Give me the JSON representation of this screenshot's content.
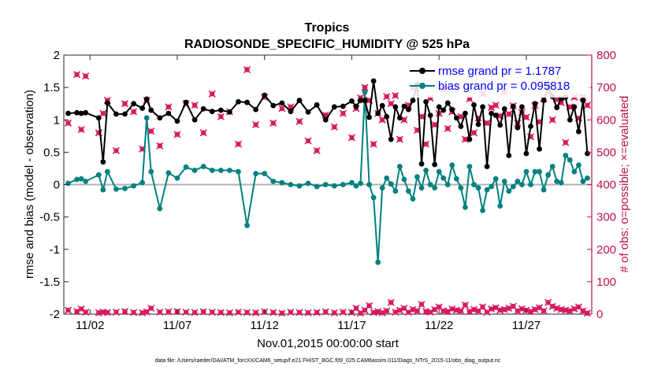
{
  "chart_data": {
    "type": "line",
    "title": "Tropics",
    "subtitle": "RADIOSONDE_SPECIFIC_HUMIDITY @ 525 hPa",
    "xlabel": "Nov.01,2015 00:00:00 start",
    "ylabel": "rmse and bias (model - observation)",
    "ylabel_right": "# of obs: o=possible; ×=evaluated",
    "xlim": [
      0.5,
      30.75
    ],
    "ylim": [
      -2,
      2
    ],
    "ylim_right": [
      0,
      800
    ],
    "x_ticks": [
      2,
      7,
      12,
      17,
      22,
      27
    ],
    "x_tick_labels": [
      "11/02",
      "11/07",
      "11/12",
      "11/17",
      "11/22",
      "11/27"
    ],
    "y_ticks": [
      -2,
      -1.5,
      -1,
      -0.5,
      0,
      0.5,
      1,
      1.5,
      2
    ],
    "y_tick_labels": [
      "-2",
      "-1.5",
      "-1",
      "-0.5",
      "0",
      "0.5",
      "1",
      "1.5",
      "2"
    ],
    "y_ticks_right": [
      0,
      100,
      200,
      300,
      400,
      500,
      600,
      700,
      800
    ],
    "y_tick_labels_right": [
      "0",
      "100",
      "200",
      "300",
      "400",
      "500",
      "600",
      "700",
      "800"
    ],
    "legend": [
      "rmse grand pr = 1.1787",
      "bias grand pr = 0.095818"
    ],
    "legend_position": "top-right",
    "footnote": "data file: /Users/raeder/DAI/ATM_forcXX/CAM6_setup/f.e21.FHIST_BGC.f09_025.CAM6assim.011/Diags_NTrS_2015-11/obs_diag_output.nc",
    "colors": {
      "rmse": "#000000",
      "bias": "#008080",
      "obs": "#d81b60",
      "zero_line": "#b3b3b3"
    },
    "series": [
      {
        "name": "rmse",
        "x": [
          0.75,
          1.25,
          1.5,
          1.75,
          2.5,
          2.75,
          3.0,
          3.5,
          4.0,
          4.5,
          5.0,
          5.25,
          5.5,
          6.0,
          6.5,
          7.0,
          7.5,
          8.0,
          8.5,
          9.0,
          9.5,
          10.0,
          10.5,
          11.0,
          11.5,
          12.0,
          12.5,
          13.0,
          13.5,
          14.0,
          14.5,
          15.0,
          15.5,
          16.0,
          16.5,
          17.0,
          17.25,
          17.5,
          17.75,
          18.0,
          18.25,
          18.5,
          18.75,
          19.0,
          19.25,
          19.5,
          19.75,
          20.0,
          20.25,
          20.5,
          20.75,
          21.0,
          21.25,
          21.5,
          21.75,
          22.0,
          22.25,
          22.5,
          22.75,
          23.0,
          23.25,
          23.5,
          23.75,
          24.0,
          24.25,
          24.5,
          24.75,
          25.0,
          25.25,
          25.5,
          25.75,
          26.0,
          26.25,
          26.5,
          26.75,
          27.0,
          27.25,
          27.5,
          27.75,
          28.0,
          28.25,
          28.5,
          28.75,
          29.0,
          29.25,
          29.5,
          29.75,
          30.0,
          30.25,
          30.5
        ],
        "values": [
          1.1,
          1.11,
          1.1,
          1.11,
          1.03,
          0.35,
          1.26,
          1.09,
          1.09,
          1.25,
          1.18,
          1.32,
          1.15,
          1.03,
          1.1,
          0.98,
          1.27,
          1.0,
          1.17,
          1.13,
          1.15,
          1.12,
          1.28,
          1.27,
          1.16,
          1.38,
          1.22,
          1.26,
          1.13,
          1.3,
          1.12,
          1.23,
          1.0,
          1.2,
          1.21,
          1.29,
          1.21,
          1.3,
          1.3,
          1.04,
          1.6,
          1.1,
          1.22,
          1.05,
          0.7,
          1.2,
          1.03,
          1.21,
          1.16,
          1.3,
          1.55,
          0.32,
          1.28,
          1.07,
          0.31,
          1.2,
          1.15,
          1.26,
          1.16,
          1.03,
          0.9,
          1.1,
          0.7,
          1.23,
          0.93,
          1.2,
          0.28,
          1.1,
          1.07,
          0.92,
          1.17,
          0.45,
          1.21,
          0.88,
          1.2,
          0.48,
          0.9,
          1.25,
          0.55,
          1.3,
          1.53,
          1.36,
          1.19,
          1.33,
          1.35,
          1.0,
          1.2,
          0.82,
          1.3,
          0.48
        ]
      },
      {
        "name": "bias",
        "x": [
          0.75,
          1.25,
          1.5,
          1.75,
          2.5,
          2.75,
          3.0,
          3.5,
          4.0,
          4.5,
          5.0,
          5.25,
          5.5,
          6.0,
          6.5,
          7.0,
          7.5,
          8.0,
          8.5,
          9.0,
          9.5,
          10.0,
          10.5,
          11.0,
          11.5,
          12.0,
          12.5,
          13.0,
          13.5,
          14.0,
          14.5,
          15.0,
          15.5,
          16.0,
          16.5,
          17.0,
          17.25,
          17.5,
          17.75,
          18.0,
          18.25,
          18.5,
          18.75,
          19.0,
          19.25,
          19.5,
          19.75,
          20.0,
          20.25,
          20.5,
          20.75,
          21.0,
          21.25,
          21.5,
          21.75,
          22.0,
          22.25,
          22.5,
          22.75,
          23.0,
          23.25,
          23.5,
          23.75,
          24.0,
          24.25,
          24.5,
          24.75,
          25.0,
          25.25,
          25.5,
          25.75,
          26.0,
          26.25,
          26.5,
          26.75,
          27.0,
          27.25,
          27.5,
          27.75,
          28.0,
          28.25,
          28.5,
          28.75,
          29.0,
          29.25,
          29.5,
          29.75,
          30.0,
          30.25,
          30.5
        ],
        "values": [
          0.02,
          0.08,
          0.09,
          0.05,
          0.15,
          -0.08,
          0.2,
          -0.07,
          -0.06,
          -0.02,
          0.03,
          1.03,
          0.2,
          -0.37,
          0.18,
          0.1,
          0.27,
          0.22,
          0.28,
          0.22,
          0.22,
          0.22,
          0.2,
          -0.63,
          0.17,
          0.17,
          0.05,
          0.03,
          0.0,
          -0.02,
          0.02,
          -0.03,
          0.0,
          -0.02,
          0.0,
          0.03,
          -0.02,
          0.02,
          1.43,
          0.0,
          -0.2,
          -1.2,
          -0.05,
          0.1,
          0.01,
          -0.1,
          0.28,
          0.08,
          -0.1,
          -0.22,
          0.12,
          -0.05,
          0.22,
          0.0,
          -0.05,
          0.2,
          0.1,
          0.0,
          0.3,
          0.09,
          -0.05,
          -0.35,
          0.28,
          0.0,
          -0.05,
          -0.4,
          -0.08,
          -0.03,
          0.09,
          -0.33,
          0.05,
          -0.1,
          -0.03,
          0.05,
          0.0,
          0.2,
          0.0,
          0.2,
          0.2,
          -0.08,
          0.15,
          0.28,
          0.05,
          0.03,
          0.45,
          0.38,
          0.2,
          0.3,
          0.05,
          0.1
        ]
      },
      {
        "name": "obs_possible",
        "x": [
          0.75,
          1.25,
          1.5,
          1.75,
          2.5,
          2.75,
          3.0,
          3.5,
          4.0,
          4.5,
          5.0,
          5.25,
          5.5,
          6.0,
          6.5,
          7.0,
          7.5,
          8.0,
          8.5,
          9.0,
          9.5,
          10.0,
          10.5,
          11.0,
          11.5,
          12.0,
          12.5,
          13.0,
          13.5,
          14.0,
          14.5,
          15.0,
          15.5,
          16.0,
          16.5,
          17.0,
          17.25,
          17.5,
          17.75,
          18.0,
          18.25,
          18.5,
          18.75,
          19.0,
          19.25,
          19.5,
          19.75,
          20.0,
          20.25,
          20.5,
          20.75,
          21.0,
          21.25,
          21.5,
          21.75,
          22.0,
          22.25,
          22.5,
          22.75,
          23.0,
          23.25,
          23.5,
          23.75,
          24.0,
          24.25,
          24.5,
          24.75,
          25.0,
          25.25,
          25.5,
          25.75,
          26.0,
          26.25,
          26.5,
          26.75,
          27.0,
          27.25,
          27.5,
          27.75,
          28.0,
          28.25,
          28.5,
          28.75,
          29.0,
          29.25,
          29.5,
          29.75,
          30.0,
          30.25,
          30.5
        ],
        "values": [
          12,
          8,
          16,
          6,
          4,
          6,
          5,
          6,
          8,
          5,
          4,
          7,
          18,
          6,
          7,
          8,
          6,
          5,
          7,
          6,
          5,
          4,
          6,
          5,
          4,
          7,
          5,
          3,
          6,
          5,
          4,
          5,
          7,
          4,
          6,
          5,
          18,
          3,
          12,
          26,
          5,
          8,
          4,
          10,
          36,
          6,
          12,
          18,
          6,
          14,
          10,
          30,
          8,
          6,
          14,
          22,
          10,
          8,
          16,
          12,
          10,
          28,
          8,
          14,
          10,
          22,
          6,
          16,
          20,
          12,
          14,
          18,
          24,
          10,
          16,
          12,
          8,
          14,
          20,
          10,
          36,
          24,
          18,
          14,
          12,
          10,
          16,
          22,
          10,
          3
        ]
      },
      {
        "name": "obs_evaluated",
        "x": [
          0.75,
          1.25,
          1.5,
          1.75,
          2.5,
          2.75,
          3.0,
          3.5,
          4.0,
          4.5,
          5.0,
          5.25,
          5.5,
          6.0,
          6.5,
          7.0,
          7.5,
          8.0,
          8.5,
          9.0,
          9.5,
          10.0,
          10.5,
          11.0,
          11.5,
          12.0,
          12.5,
          13.0,
          13.5,
          14.0,
          14.5,
          15.0,
          15.5,
          16.0,
          16.5,
          17.0,
          17.25,
          17.5,
          17.75,
          18.0,
          18.25,
          18.5,
          18.75,
          19.0,
          19.25,
          19.5,
          19.75,
          20.0,
          20.25,
          20.5,
          20.75,
          21.0,
          21.25,
          21.5,
          21.75,
          22.0,
          22.25,
          22.5,
          22.75,
          23.0,
          23.25,
          23.5,
          23.75,
          24.0,
          24.25,
          24.5,
          24.75,
          25.0,
          25.25,
          25.5,
          25.75,
          26.0,
          26.25,
          26.5,
          26.75,
          27.0,
          27.25,
          27.5,
          27.75,
          28.0,
          28.25,
          28.5,
          28.75,
          29.0,
          29.25,
          29.5,
          29.75,
          30.0,
          30.25,
          30.5
        ],
        "values": [
          590,
          740,
          570,
          735,
          560,
          620,
          660,
          505,
          650,
          625,
          510,
          660,
          565,
          520,
          640,
          555,
          650,
          645,
          560,
          680,
          610,
          625,
          525,
          755,
          585,
          670,
          590,
          635,
          640,
          595,
          535,
          505,
          615,
          578,
          620,
          545,
          635,
          668,
          700,
          660,
          525,
          620,
          600,
          672,
          650,
          675,
          540,
          600,
          645,
          700,
          568,
          610,
          525,
          667,
          585,
          620,
          695,
          573,
          625,
          700,
          610,
          540,
          665,
          560,
          605,
          680,
          590,
          638,
          645,
          612,
          688,
          618,
          643,
          590,
          623,
          608,
          548,
          644,
          594,
          665,
          686,
          600,
          663,
          653,
          530,
          640,
          670,
          605,
          670,
          645
        ]
      }
    ]
  }
}
